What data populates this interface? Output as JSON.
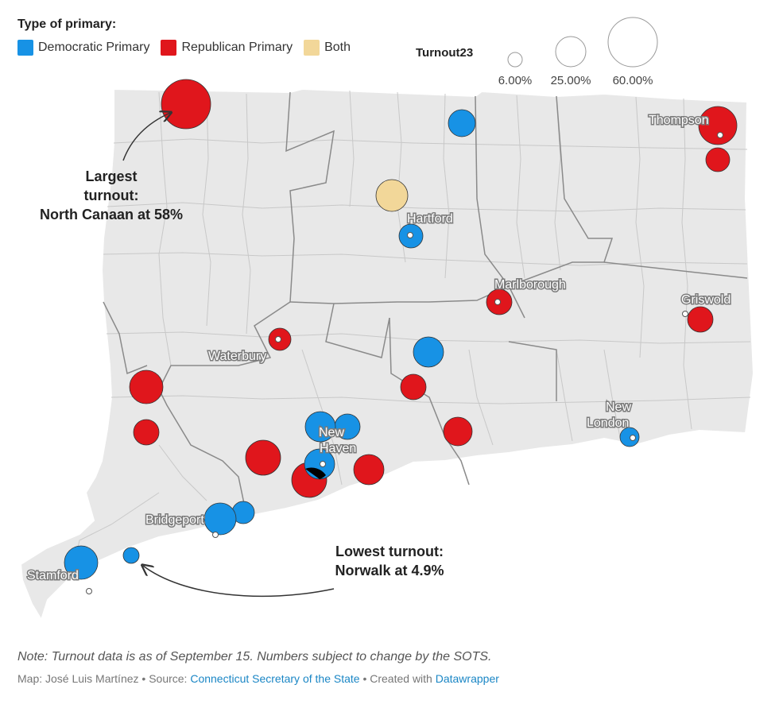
{
  "legend": {
    "title": "Type of primary:",
    "categories": [
      {
        "label": "Democratic Primary",
        "color": "#1792e5"
      },
      {
        "label": "Republican Primary",
        "color": "#e0161c"
      },
      {
        "label": "Both",
        "color": "#f2d799"
      }
    ],
    "size_title": "Turnout23",
    "sizes": [
      "6.00%",
      "25.00%",
      "60.00%"
    ]
  },
  "map": {
    "city_labels": [
      "Thompson",
      "Hartford",
      "Marlborough",
      "Griswold",
      "Waterbury",
      "New",
      "Haven",
      "New",
      "London",
      "Bridgeport",
      "Stamford"
    ],
    "callout_largest": [
      "Largest",
      "turnout:",
      "North Canaan at 58%"
    ],
    "callout_lowest": [
      "Lowest turnout:",
      "Norwalk at 4.9%"
    ],
    "colors": {
      "democratic": "#1792e5",
      "republican": "#e0161c",
      "both": "#f2d799",
      "land": "#e8e8e8"
    }
  },
  "note": "Note: Turnout data is as of September 15. Numbers subject to change by the SOTS.",
  "footer": {
    "prefix": "Map: José Luis Martínez • Source: ",
    "source_link": "Connecticut Secretary of the State",
    "middle": " • Created with ",
    "tool_link": "Datawrapper"
  }
}
